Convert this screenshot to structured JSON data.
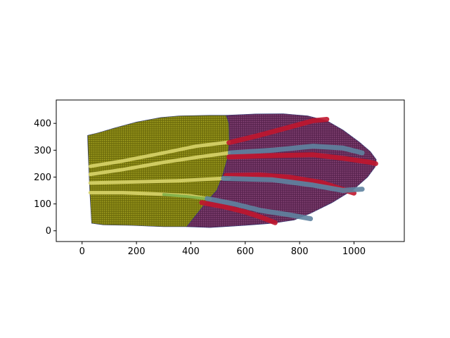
{
  "chart_data": {
    "type": "scatter",
    "title": "",
    "xlabel": "",
    "ylabel": "",
    "xlim": [
      -95,
      1185
    ],
    "ylim": [
      -40,
      487
    ],
    "xticks": [
      0,
      200,
      400,
      600,
      800,
      1000
    ],
    "yticks": [
      0,
      100,
      200,
      300,
      400
    ],
    "grid": false,
    "legend": "none",
    "colors": {
      "olive": "#6f6e0c",
      "plum": "#6e2f5e",
      "light_stripe": "#d8d46a",
      "green_stripe": "#7fb04a",
      "red_stripe": "#c0162e",
      "steel_stripe": "#5f83a0",
      "navy_edge": "#2f3a78"
    },
    "regions": [
      {
        "name": "olive region",
        "color_key": "olive",
        "outline": [
          [
            20,
            355
          ],
          [
            60,
            365
          ],
          [
            120,
            383
          ],
          [
            200,
            405
          ],
          [
            290,
            422
          ],
          [
            360,
            428
          ],
          [
            470,
            430
          ],
          [
            530,
            430
          ],
          [
            540,
            400
          ],
          [
            542,
            330
          ],
          [
            535,
            270
          ],
          [
            515,
            200
          ],
          [
            495,
            150
          ],
          [
            460,
            110
          ],
          [
            420,
            60
          ],
          [
            385,
            15
          ],
          [
            300,
            15
          ],
          [
            180,
            20
          ],
          [
            80,
            22
          ],
          [
            35,
            28
          ],
          [
            28,
            150
          ],
          [
            22,
            300
          ]
        ]
      },
      {
        "name": "plum region",
        "color_key": "plum",
        "outline": [
          [
            530,
            430
          ],
          [
            640,
            435
          ],
          [
            740,
            436
          ],
          [
            830,
            428
          ],
          [
            900,
            410
          ],
          [
            960,
            375
          ],
          [
            1020,
            330
          ],
          [
            1060,
            295
          ],
          [
            1082,
            265
          ],
          [
            1078,
            238
          ],
          [
            1050,
            200
          ],
          [
            1000,
            155
          ],
          [
            920,
            105
          ],
          [
            840,
            65
          ],
          [
            780,
            40
          ],
          [
            700,
            28
          ],
          [
            600,
            20
          ],
          [
            470,
            12
          ],
          [
            385,
            15
          ],
          [
            420,
            60
          ],
          [
            460,
            110
          ],
          [
            495,
            150
          ],
          [
            515,
            200
          ],
          [
            535,
            270
          ],
          [
            542,
            330
          ],
          [
            540,
            400
          ]
        ]
      }
    ],
    "stripes": [
      {
        "color_key": "light_stripe",
        "width": 5,
        "points": [
          [
            30,
            240
          ],
          [
            150,
            260
          ],
          [
            300,
            290
          ],
          [
            420,
            315
          ],
          [
            540,
            330
          ]
        ]
      },
      {
        "color_key": "light_stripe",
        "width": 5,
        "points": [
          [
            30,
            210
          ],
          [
            150,
            228
          ],
          [
            300,
            255
          ],
          [
            430,
            275
          ],
          [
            540,
            290
          ]
        ]
      },
      {
        "color_key": "light_stripe",
        "width": 5,
        "points": [
          [
            30,
            178
          ],
          [
            200,
            182
          ],
          [
            350,
            186
          ],
          [
            460,
            192
          ],
          [
            540,
            196
          ]
        ]
      },
      {
        "color_key": "light_stripe",
        "width": 5,
        "points": [
          [
            30,
            142
          ],
          [
            150,
            142
          ],
          [
            300,
            136
          ],
          [
            400,
            130
          ],
          [
            470,
            118
          ]
        ]
      },
      {
        "color_key": "green_stripe",
        "width": 4,
        "points": [
          [
            300,
            135
          ],
          [
            380,
            128
          ],
          [
            470,
            118
          ]
        ]
      },
      {
        "color_key": "red_stripe",
        "width": 7,
        "points": [
          [
            540,
            328
          ],
          [
            650,
            355
          ],
          [
            760,
            385
          ],
          [
            850,
            410
          ],
          [
            900,
            415
          ]
        ]
      },
      {
        "color_key": "steel_stripe",
        "width": 7,
        "points": [
          [
            545,
            290
          ],
          [
            700,
            300
          ],
          [
            850,
            315
          ],
          [
            960,
            308
          ],
          [
            1030,
            290
          ]
        ]
      },
      {
        "color_key": "red_stripe",
        "width": 7,
        "points": [
          [
            540,
            275
          ],
          [
            700,
            280
          ],
          [
            850,
            283
          ],
          [
            960,
            270
          ],
          [
            1060,
            255
          ],
          [
            1080,
            250
          ]
        ]
      },
      {
        "color_key": "red_stripe",
        "width": 7,
        "points": [
          [
            530,
            206
          ],
          [
            650,
            208
          ],
          [
            760,
            200
          ],
          [
            880,
            180
          ],
          [
            970,
            150
          ],
          [
            1000,
            140
          ]
        ]
      },
      {
        "color_key": "steel_stripe",
        "width": 7,
        "points": [
          [
            520,
            195
          ],
          [
            700,
            190
          ],
          [
            850,
            170
          ],
          [
            960,
            150
          ],
          [
            1030,
            155
          ]
        ]
      },
      {
        "color_key": "red_stripe",
        "width": 7,
        "points": [
          [
            440,
            105
          ],
          [
            520,
            90
          ],
          [
            600,
            70
          ],
          [
            660,
            50
          ],
          [
            710,
            30
          ]
        ]
      },
      {
        "color_key": "steel_stripe",
        "width": 7,
        "points": [
          [
            460,
            120
          ],
          [
            560,
            100
          ],
          [
            660,
            75
          ],
          [
            760,
            60
          ],
          [
            840,
            45
          ]
        ]
      }
    ]
  }
}
